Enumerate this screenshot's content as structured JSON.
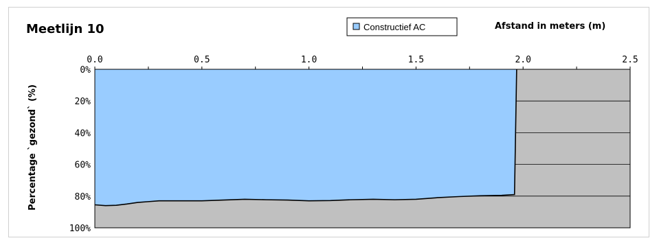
{
  "chart_data": {
    "type": "area",
    "title": "Meetlijn 10",
    "xlabel": "Afstand in meters (m)",
    "ylabel": "Percentage `gezond` (%)",
    "x_ticks": [
      "0.0",
      "0.5",
      "1.0",
      "1.5",
      "2.0",
      "2.5"
    ],
    "y_ticks": [
      "0%",
      "20%",
      "40%",
      "60%",
      "80%",
      "100%"
    ],
    "xlim": [
      0,
      2.5
    ],
    "ylim": [
      0,
      100
    ],
    "y_inverted": true,
    "x_axis_position": "top",
    "grid": "horizontal",
    "legend_position": "top-center",
    "series": [
      {
        "name": "Constructief AC",
        "color": "#99ccff",
        "x": [
          0.0,
          0.05,
          0.1,
          0.15,
          0.2,
          0.25,
          0.3,
          0.4,
          0.5,
          0.6,
          0.7,
          0.8,
          0.9,
          1.0,
          1.1,
          1.2,
          1.3,
          1.4,
          1.5,
          1.6,
          1.7,
          1.8,
          1.9,
          1.96,
          1.97
        ],
        "values": [
          85.5,
          86,
          85.8,
          85,
          84,
          83.5,
          83,
          83,
          83,
          82.5,
          82,
          82.3,
          82.5,
          83,
          82.8,
          82.3,
          82,
          82.3,
          82,
          81,
          80.3,
          79.8,
          79.5,
          79,
          0
        ]
      }
    ],
    "plot_background": "#c0c0c0",
    "border_color": "#000000"
  }
}
